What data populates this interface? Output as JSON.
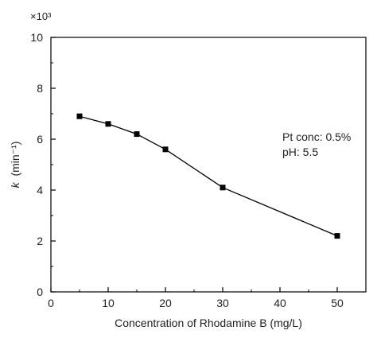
{
  "chart_data": {
    "type": "line",
    "title": "",
    "xlabel": "Concentration of Rhodamine B (mg/L)",
    "ylabel_var": "k",
    "ylabel_unit": "(min⁻¹)",
    "y_multiplier": "×10³",
    "xlim": [
      0,
      55
    ],
    "ylim": [
      0,
      10
    ],
    "x_ticks": [
      0,
      10,
      20,
      30,
      40,
      50
    ],
    "y_ticks": [
      0,
      2,
      4,
      6,
      8,
      10
    ],
    "grid": false,
    "marker": "square",
    "series": [
      {
        "x": [
          5,
          10,
          15,
          20,
          30,
          50
        ],
        "y": [
          6.9,
          6.6,
          6.2,
          5.6,
          4.1,
          2.2
        ]
      }
    ],
    "annotations": [
      "Pt conc: 0.5%",
      "pH: 5.5"
    ],
    "colors": {
      "line": "#000000",
      "axis": "#000000",
      "text": "#222222"
    }
  }
}
